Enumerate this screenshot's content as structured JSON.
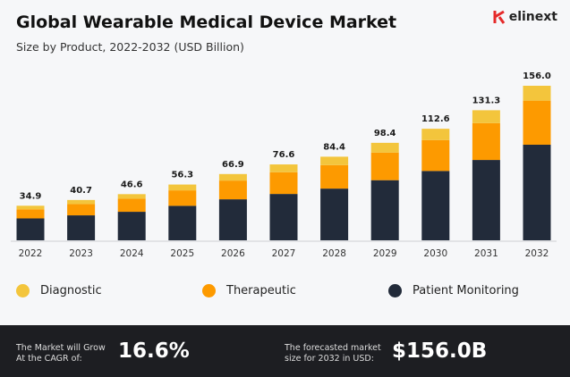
{
  "title": "Global Wearable Medical Device Market",
  "subtitle": "Size by Product, 2022-2032 (USD Billion)",
  "logo": {
    "text": "elinext",
    "color": "#e52a2a"
  },
  "chart_data": {
    "type": "bar",
    "stacked": true,
    "categories": [
      "2022",
      "2023",
      "2024",
      "2025",
      "2026",
      "2027",
      "2028",
      "2029",
      "2030",
      "2031",
      "2032"
    ],
    "totals": [
      "34.9",
      "40.7",
      "46.6",
      "56.3",
      "66.9",
      "76.6",
      "84.4",
      "98.4",
      "112.6",
      "131.3",
      "156.0"
    ],
    "series": [
      {
        "name": "Patient Monitoring",
        "color": "#222b3a",
        "values": [
          22.1,
          25.2,
          28.8,
          34.8,
          41.4,
          46.8,
          52.2,
          60.7,
          70.0,
          81.1,
          96.5
        ]
      },
      {
        "name": "Therapeutic",
        "color": "#fd9a00",
        "values": [
          9.2,
          11.4,
          13.2,
          15.6,
          18.9,
          21.9,
          23.7,
          27.9,
          31.2,
          37.2,
          44.5
        ]
      },
      {
        "name": "Diagnostic",
        "color": "#f3c53c",
        "values": [
          3.6,
          4.1,
          4.6,
          5.9,
          6.6,
          7.9,
          8.5,
          9.8,
          11.4,
          13.0,
          15.0
        ]
      }
    ],
    "ylim": [
      0,
      160
    ],
    "grid": false,
    "legend": "bottom"
  },
  "legend": [
    {
      "label": "Diagnostic",
      "color": "#f3c53c"
    },
    {
      "label": "Therapeutic",
      "color": "#fd9a00"
    },
    {
      "label": "Patient Monitoring",
      "color": "#222b3a"
    }
  ],
  "footer": {
    "cagr_label_1": "The Market will Grow",
    "cagr_label_2": "At the CAGR of:",
    "cagr_value": "16.6%",
    "size_label_1": "The forecasted market",
    "size_label_2": "size for 2032 in USD:",
    "size_value": "$156.0B"
  }
}
